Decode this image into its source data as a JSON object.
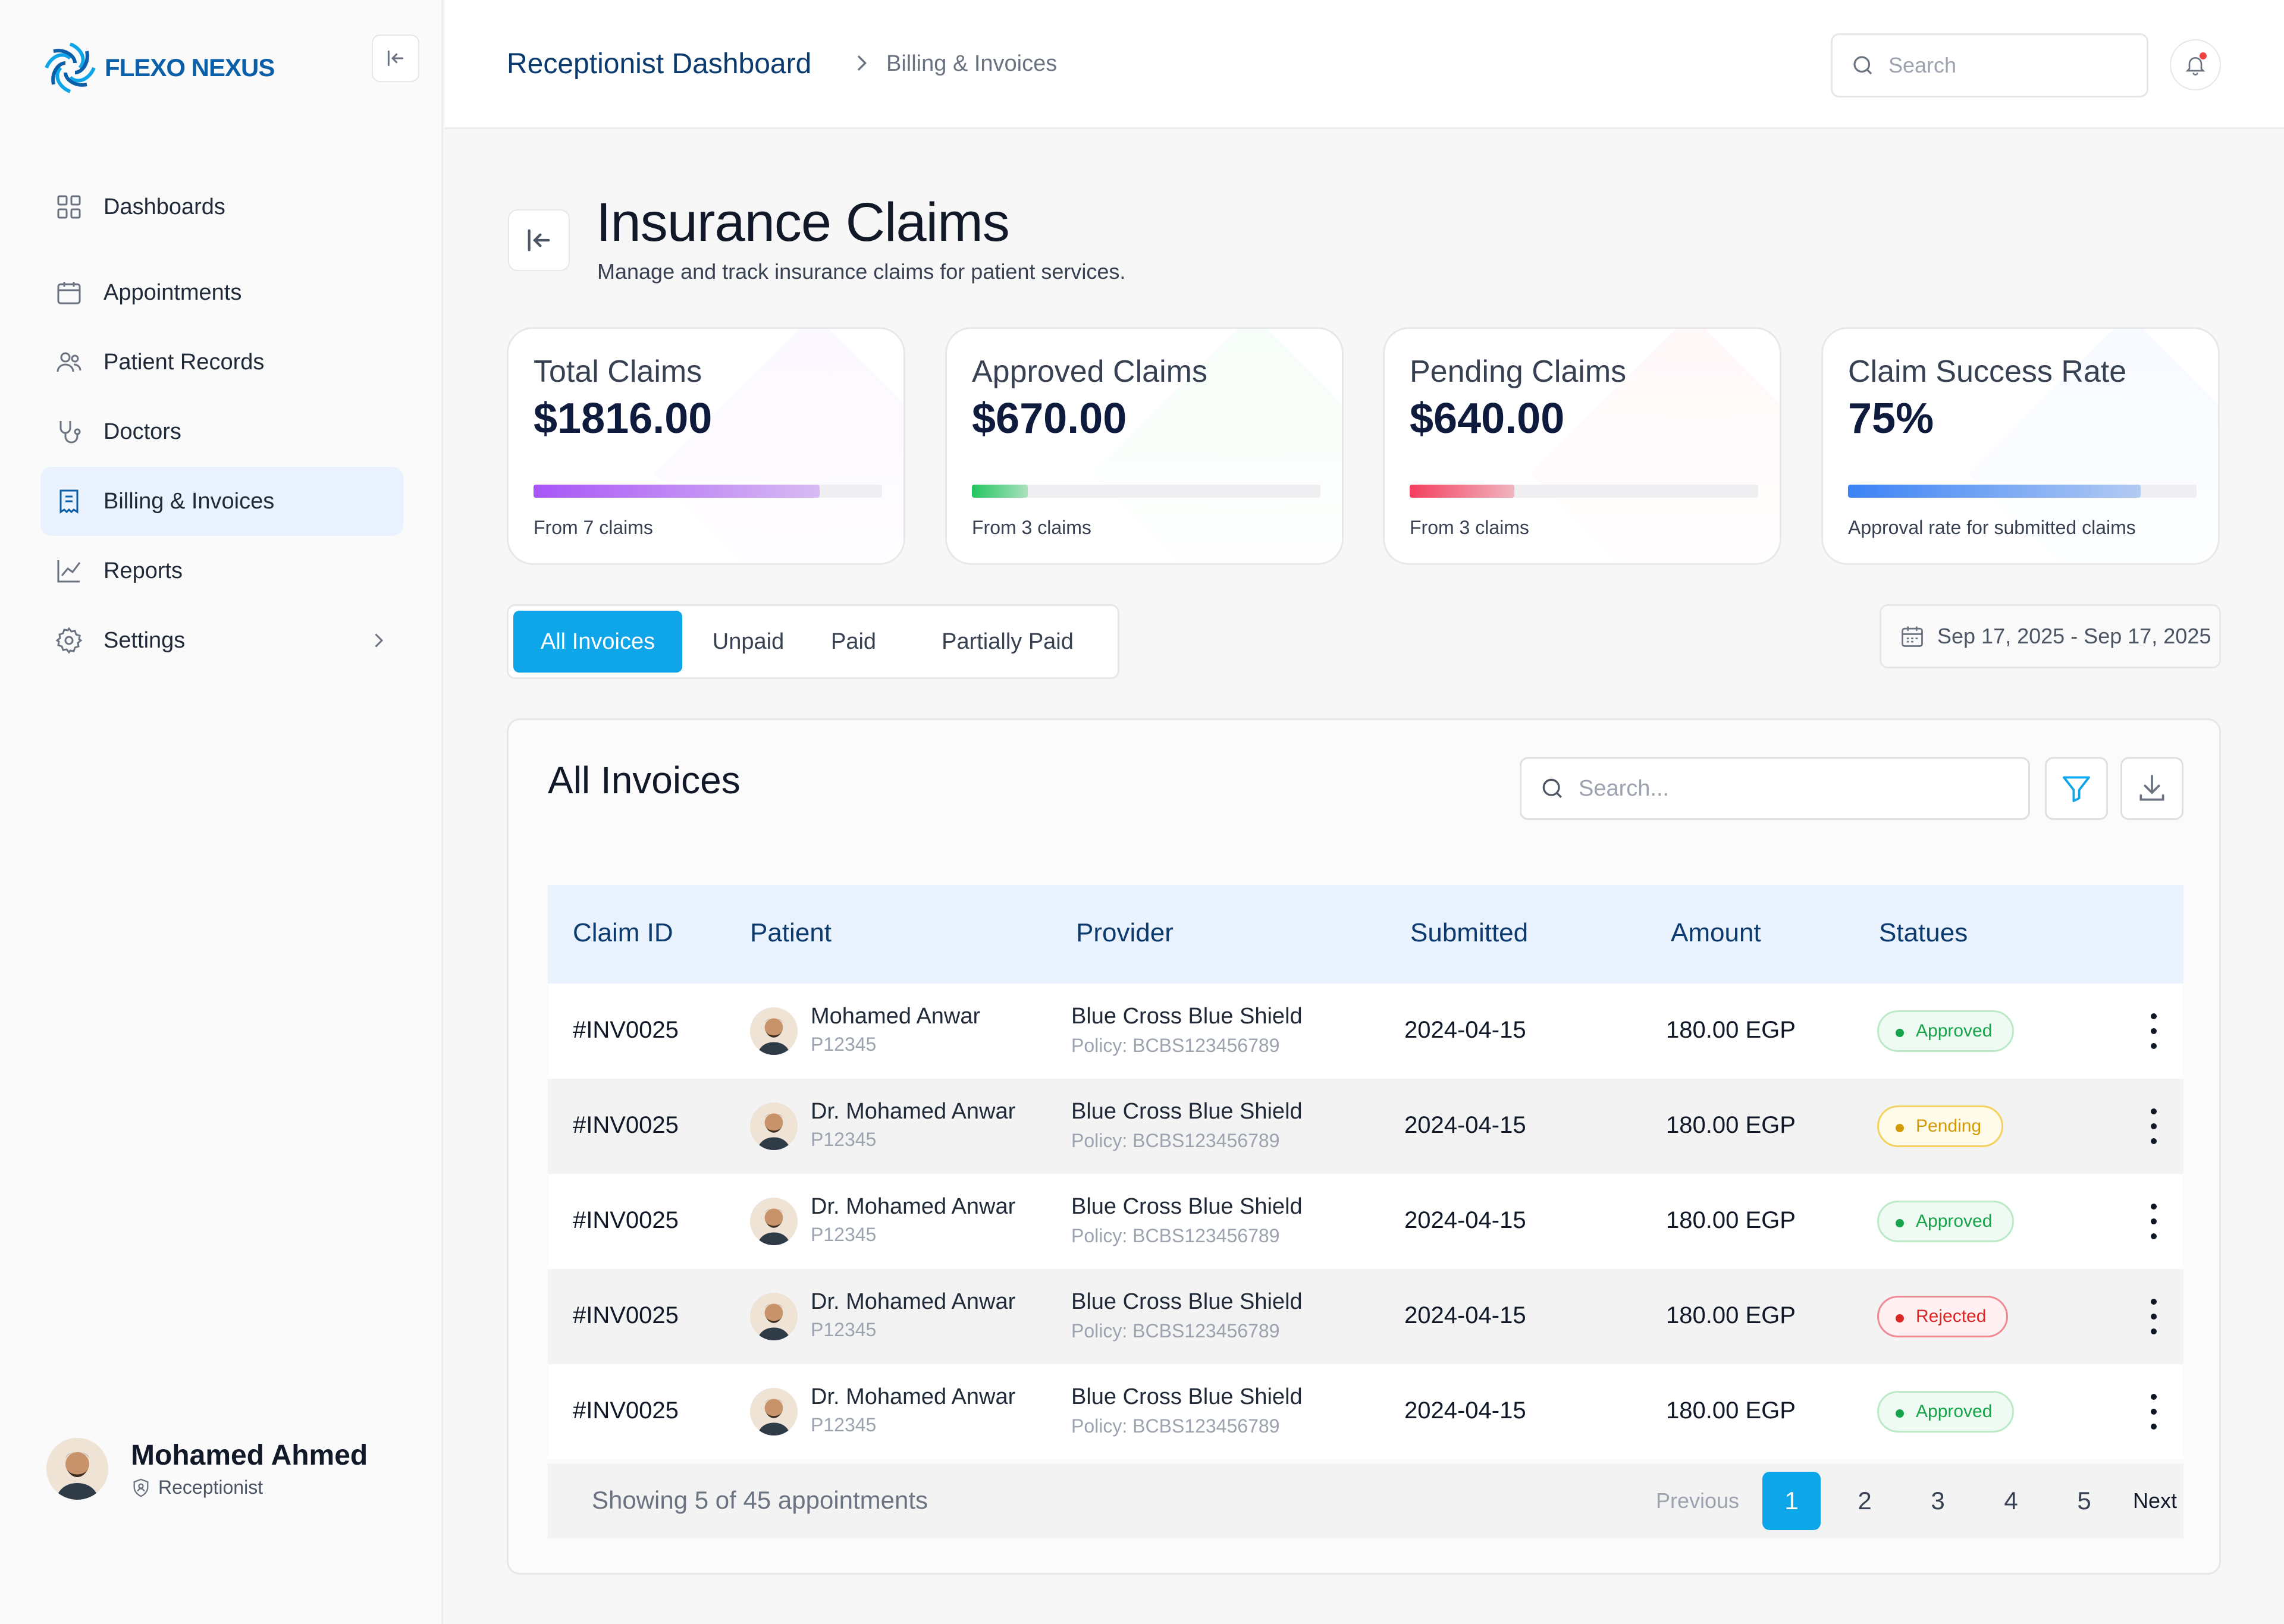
{
  "brand": {
    "name": "FLEXO NEXUS",
    "color": "#0a5fa8"
  },
  "sidebar": {
    "items": [
      {
        "label": "Dashboards",
        "icon": "grid-icon"
      },
      {
        "label": "Appointments",
        "icon": "calendar-icon"
      },
      {
        "label": "Patient Records",
        "icon": "users-icon"
      },
      {
        "label": "Doctors",
        "icon": "stethoscope-icon"
      },
      {
        "label": "Billing & Invoices",
        "icon": "receipt-icon",
        "active": true
      },
      {
        "label": "Reports",
        "icon": "line-chart-icon"
      },
      {
        "label": "Settings",
        "icon": "gear-icon"
      }
    ],
    "user": {
      "name": "Mohamed Ahmed",
      "role": "Receptionist"
    }
  },
  "header": {
    "breadcrumb_main": "Receptionist Dashboard",
    "breadcrumb_sub": "Billing & Invoices",
    "search_placeholder": "Search"
  },
  "page": {
    "title": "Insurance Claims",
    "subtitle": "Manage and track insurance claims for patient services."
  },
  "stats": [
    {
      "title": "Total Claims",
      "value": "$1816.00",
      "note": "From 7 claims",
      "progress": 0.82,
      "color": "#a855f7"
    },
    {
      "title": "Approved Claims",
      "value": "$670.00",
      "note": "From 3 claims",
      "progress": 0.16,
      "color": "#22c55e"
    },
    {
      "title": "Pending Claims",
      "value": "$640.00",
      "note": "From 3 claims",
      "progress": 0.3,
      "color": "#f43f5e"
    },
    {
      "title": "Claim Success Rate",
      "value": "75%",
      "note": "Approval rate for submitted claims",
      "progress": 0.84,
      "color": "#3b82f6"
    }
  ],
  "tabs": [
    "All Invoices",
    "Unpaid",
    "Paid",
    "Partially Paid"
  ],
  "date_range": "Sep 17, 2025 - Sep 17, 2025",
  "table": {
    "title": "All Invoices",
    "search_placeholder": "Search...",
    "columns": [
      "Claim ID",
      "Patient",
      "Provider",
      "Submitted",
      "Amount",
      "Statues"
    ],
    "rows": [
      {
        "id": "#INV0025",
        "patient": "Mohamed Anwar",
        "patient_id": "P12345",
        "provider": "Blue Cross Blue Shield",
        "policy": "Policy: BCBS123456789",
        "submitted": "2024-04-15",
        "amount": "180.00 EGP",
        "status": "Approved"
      },
      {
        "id": "#INV0025",
        "patient": "Dr. Mohamed Anwar",
        "patient_id": "P12345",
        "provider": "Blue Cross Blue Shield",
        "policy": "Policy: BCBS123456789",
        "submitted": "2024-04-15",
        "amount": "180.00 EGP",
        "status": "Pending"
      },
      {
        "id": "#INV0025",
        "patient": "Dr. Mohamed Anwar",
        "patient_id": "P12345",
        "provider": "Blue Cross Blue Shield",
        "policy": "Policy: BCBS123456789",
        "submitted": "2024-04-15",
        "amount": "180.00 EGP",
        "status": "Approved"
      },
      {
        "id": "#INV0025",
        "patient": "Dr. Mohamed Anwar",
        "patient_id": "P12345",
        "provider": "Blue Cross Blue Shield",
        "policy": "Policy: BCBS123456789",
        "submitted": "2024-04-15",
        "amount": "180.00 EGP",
        "status": "Rejected"
      },
      {
        "id": "#INV0025",
        "patient": "Dr. Mohamed Anwar",
        "patient_id": "P12345",
        "provider": "Blue Cross Blue Shield",
        "policy": "Policy: BCBS123456789",
        "submitted": "2024-04-15",
        "amount": "180.00 EGP",
        "status": "Approved"
      }
    ]
  },
  "pagination": {
    "showing": "Showing 5 of 45 appointments",
    "previous": "Previous",
    "next": "Next",
    "pages": [
      "1",
      "2",
      "3",
      "4",
      "5"
    ],
    "current": "1"
  }
}
